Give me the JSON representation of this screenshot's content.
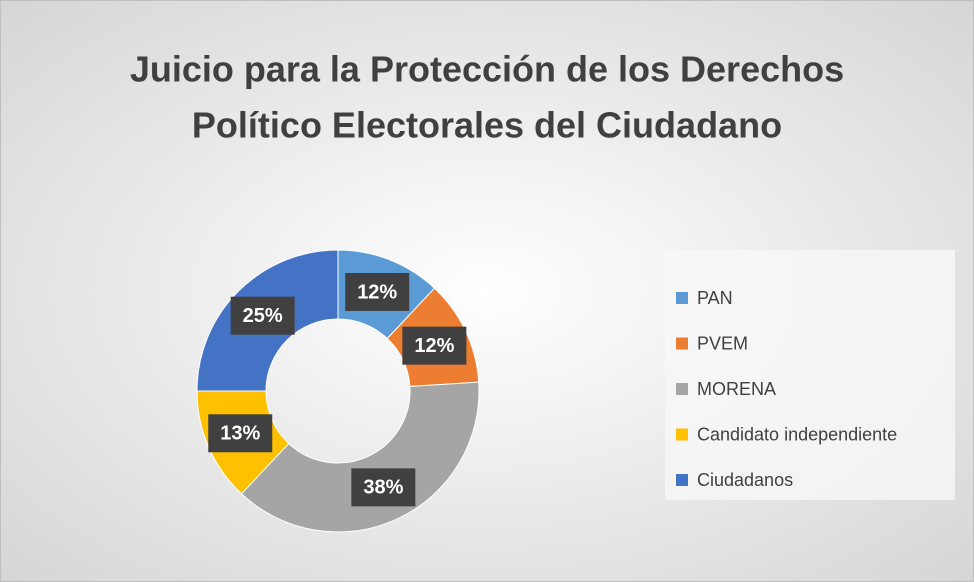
{
  "chart_data": {
    "type": "donut",
    "title": [
      "Juicio para la Protección de los Derechos",
      "Político Electorales del Ciudadano"
    ],
    "categories": [
      "PAN",
      "PVEM",
      "MORENA",
      "Candidato independiente",
      "Ciudadanos"
    ],
    "values": [
      12,
      12,
      38,
      13,
      25
    ],
    "value_labels": [
      "12%",
      "12%",
      "38%",
      "13%",
      "25%"
    ],
    "colors": [
      "#5b9bd5",
      "#ed7d31",
      "#a5a5a5",
      "#ffc000",
      "#4472c4"
    ],
    "legend": "right"
  }
}
